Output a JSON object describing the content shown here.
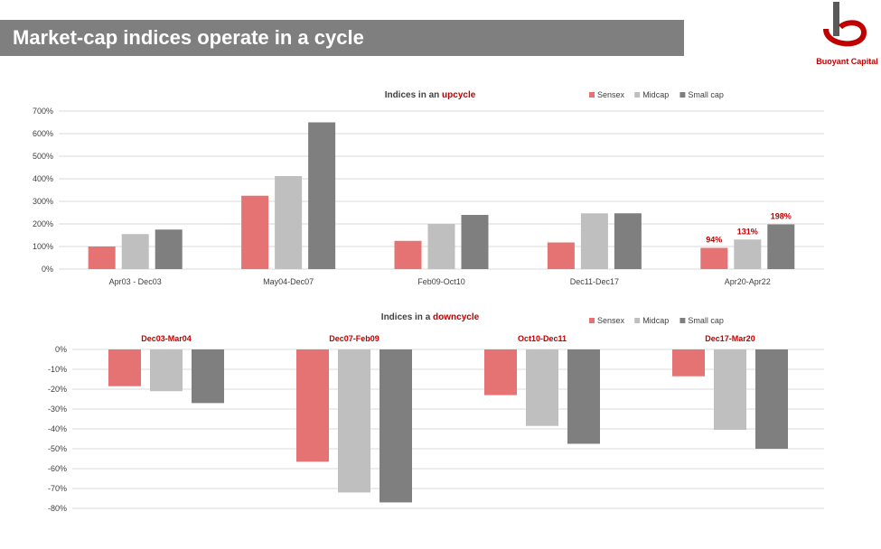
{
  "slide": {
    "title": "Market-cap indices operate in a cycle"
  },
  "logo": {
    "name": "Buoyant Capital",
    "icon": "buoyant-capital-logo",
    "colors": {
      "mark": "#c00000",
      "stroke": "#595959"
    }
  },
  "colors": {
    "sensex": "#e57373",
    "midcap": "#bfbfbf",
    "smallcap": "#7f7f7f",
    "accent": "#c00000",
    "title_bar": "#7f7f7f",
    "axis_text": "#404040",
    "grid": "#d9d9d9"
  },
  "chart_data": [
    {
      "type": "bar",
      "title_prefix": "Indices in an ",
      "title_highlight": "upcycle",
      "categories": [
        "Apr03 - Dec03",
        "May04-Dec07",
        "Feb09-Oct10",
        "Dec11-Dec17",
        "Apr20-Apr22"
      ],
      "series": [
        {
          "name": "Sensex",
          "values": [
            100,
            325,
            125,
            118,
            94
          ]
        },
        {
          "name": "Midcap",
          "values": [
            155,
            412,
            200,
            247,
            131
          ]
        },
        {
          "name": "Small cap",
          "values": [
            175,
            650,
            240,
            247,
            198
          ]
        }
      ],
      "value_labels": [
        {
          "category_index": 4,
          "series_index": 0,
          "text": "94%"
        },
        {
          "category_index": 4,
          "series_index": 1,
          "text": "131%"
        },
        {
          "category_index": 4,
          "series_index": 2,
          "text": "198%"
        }
      ],
      "ylim": [
        0,
        700
      ],
      "yticks": [
        "0%",
        "100%",
        "200%",
        "300%",
        "400%",
        "500%",
        "600%",
        "700%"
      ],
      "grid": true,
      "legend_position": "top-right"
    },
    {
      "type": "bar",
      "title_prefix": "Indices in a ",
      "title_highlight": "downcycle",
      "categories": [
        "Dec03-Mar04",
        "Dec07-Feb09",
        "Oct10-Dec11",
        "Dec17-Mar20"
      ],
      "category_label_position": "top",
      "series": [
        {
          "name": "Sensex",
          "values": [
            -18.5,
            -56.5,
            -23,
            -13.5
          ]
        },
        {
          "name": "Midcap",
          "values": [
            -21,
            -72,
            -38.5,
            -40.5
          ]
        },
        {
          "name": "Small cap",
          "values": [
            -27,
            -77,
            -47.5,
            -50
          ]
        }
      ],
      "ylim": [
        -80,
        0
      ],
      "yticks": [
        "0%",
        "-10%",
        "-20%",
        "-30%",
        "-40%",
        "-50%",
        "-60%",
        "-70%",
        "-80%"
      ],
      "grid": true,
      "legend_position": "top-right"
    }
  ]
}
